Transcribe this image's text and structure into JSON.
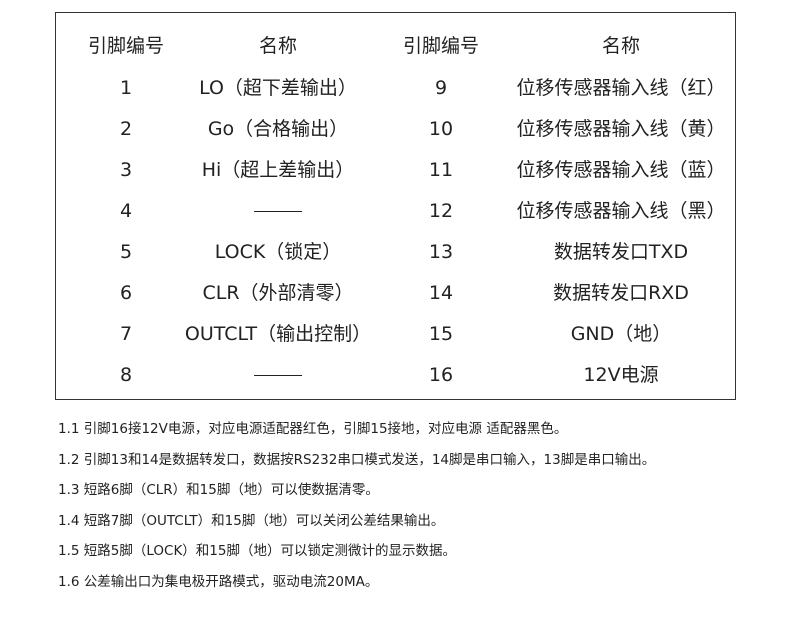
{
  "table": {
    "headers": [
      "引脚编号",
      "名称",
      "引脚编号",
      "名称"
    ],
    "rows": [
      {
        "pin_a": "1",
        "name_a": "LO（超下差输出）",
        "pin_b": "9",
        "name_b": "位移传感器输入线（红）"
      },
      {
        "pin_a": "2",
        "name_a": "Go（合格输出）",
        "pin_b": "10",
        "name_b": "位移传感器输入线（黄）"
      },
      {
        "pin_a": "3",
        "name_a": "Hi（超上差输出）",
        "pin_b": "11",
        "name_b": "位移传感器输入线（蓝）"
      },
      {
        "pin_a": "4",
        "name_a": "——",
        "pin_b": "12",
        "name_b": "位移传感器输入线（黑）"
      },
      {
        "pin_a": "5",
        "name_a": "LOCK（锁定）",
        "pin_b": "13",
        "name_b": "数据转发口TXD"
      },
      {
        "pin_a": "6",
        "name_a": "CLR（外部清零）",
        "pin_b": "14",
        "name_b": "数据转发口RXD"
      },
      {
        "pin_a": "7",
        "name_a": "OUTCLT（输出控制）",
        "pin_b": "15",
        "name_b": "GND（地）"
      },
      {
        "pin_a": "8",
        "name_a": "——",
        "pin_b": "16",
        "name_b": "12V电源"
      }
    ]
  },
  "notes": [
    "1.1 引脚16接12V电源，对应电源适配器红色，引脚15接地，对应电源 适配器黑色。",
    "1.2 引脚13和14是数据转发口，数据按RS232串口模式发送，14脚是串口输入，13脚是串口输出。",
    "1.3 短路6脚（CLR）和15脚（地）可以使数据清零。",
    "1.4 短路7脚（OUTCLT）和15脚（地）可以关闭公差结果输出。",
    "1.5 短路5脚（LOCK）和15脚（地）可以锁定测微计的显示数据。",
    "1.6 公差输出口为集电极开路模式，驱动电流20MA。"
  ]
}
